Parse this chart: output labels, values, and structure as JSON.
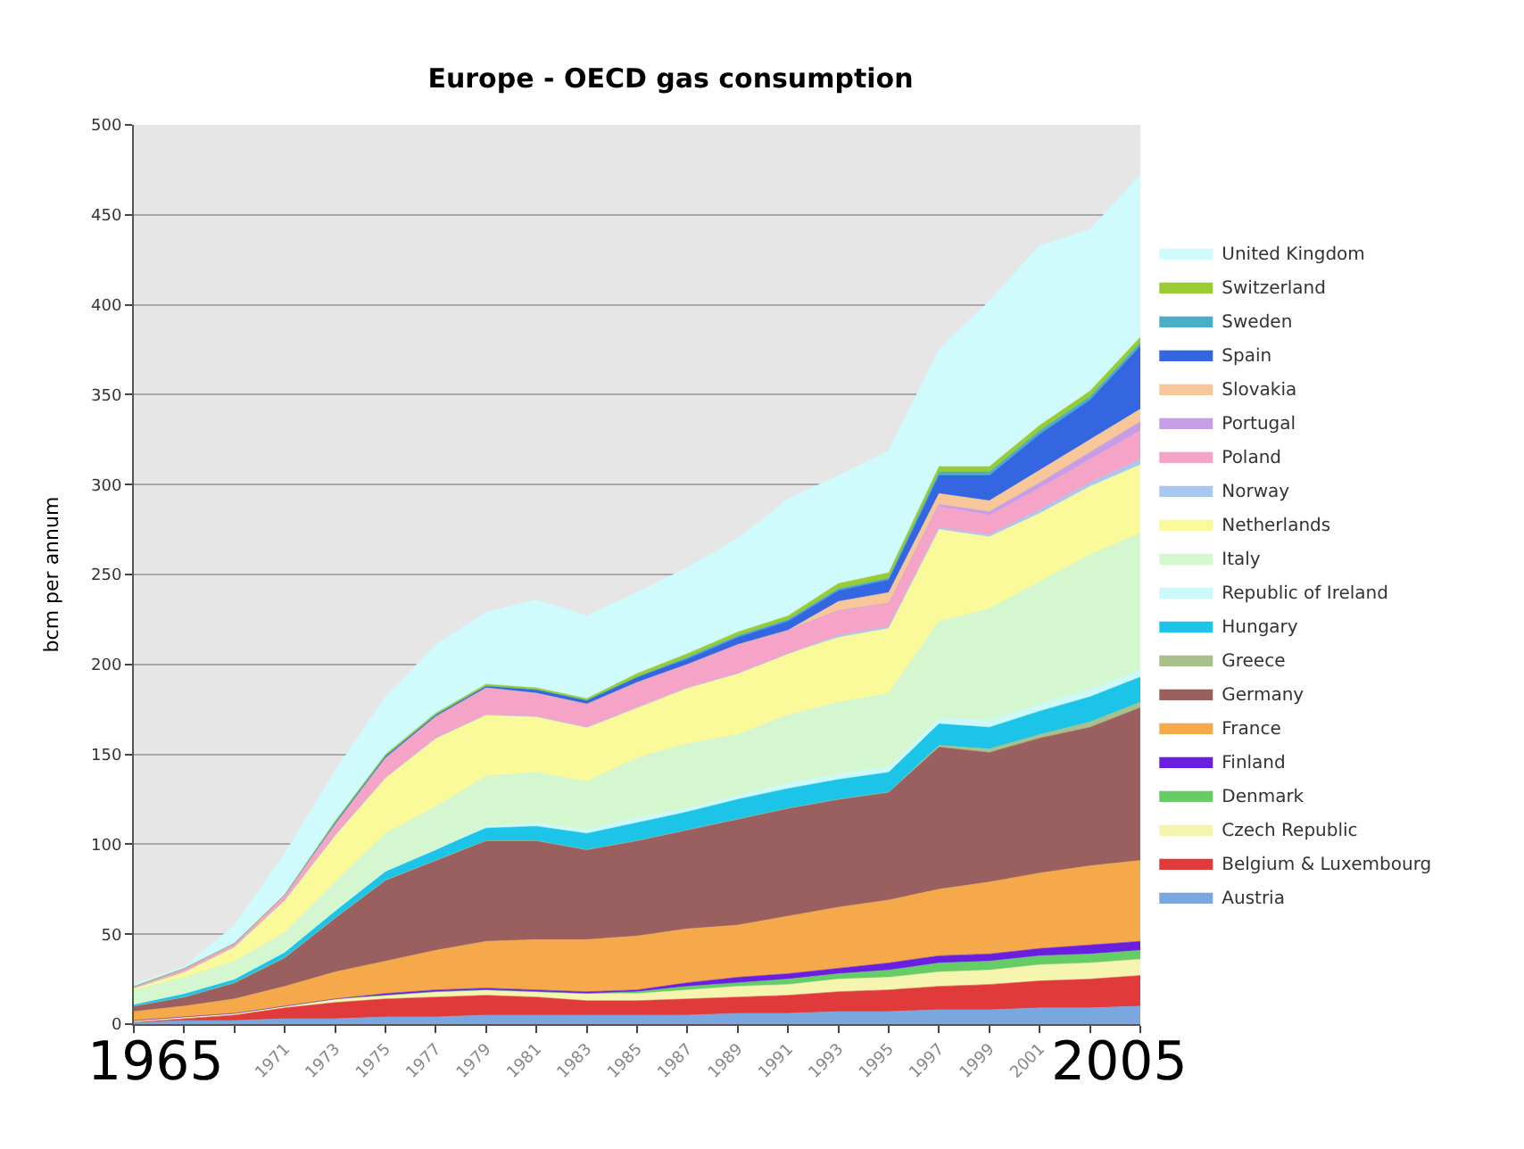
{
  "chart_data": {
    "type": "area",
    "stacked": true,
    "title": "Europe - OECD gas consumption",
    "ylabel": "bcm per annum",
    "x": [
      1965,
      1967,
      1969,
      1971,
      1973,
      1975,
      1977,
      1979,
      1981,
      1983,
      1985,
      1987,
      1989,
      1991,
      1993,
      1995,
      1997,
      1999,
      2001,
      2003,
      2005
    ],
    "xlim": [
      1965,
      2005
    ],
    "xticks": [
      {
        "value": 1965,
        "label": null
      },
      {
        "value": 1967,
        "label": null
      },
      {
        "value": 1969,
        "label": null
      },
      1971,
      1973,
      1975,
      1977,
      1979,
      1981,
      1983,
      1985,
      1987,
      1989,
      1991,
      1993,
      1995,
      1997,
      1999,
      2001,
      {
        "value": 2003,
        "label": null
      },
      {
        "value": 2005,
        "label": null
      }
    ],
    "annotations": [
      "1965",
      "2005"
    ],
    "ylim": [
      0,
      500
    ],
    "yticks": [
      0,
      50,
      100,
      150,
      200,
      250,
      300,
      350,
      400,
      450,
      500
    ],
    "grid": "y",
    "legend": "right",
    "marker": "none",
    "series": [
      {
        "name": "Austria",
        "color": "#7ba7e0",
        "values": [
          1,
          2,
          2,
          3,
          3,
          4,
          4,
          5,
          5,
          5,
          5,
          5,
          6,
          6,
          7,
          7,
          8,
          8,
          9,
          9,
          10
        ]
      },
      {
        "name": "Belgium & Luxembourg",
        "color": "#e03a3a",
        "values": [
          0,
          1,
          3,
          6,
          9,
          10,
          11,
          11,
          10,
          8,
          8,
          9,
          9,
          10,
          11,
          12,
          13,
          14,
          15,
          16,
          17
        ]
      },
      {
        "name": "Czech Republic",
        "color": "#f5f5b0",
        "values": [
          1,
          1,
          1,
          1,
          2,
          2,
          3,
          3,
          3,
          4,
          4,
          5,
          6,
          6,
          7,
          7,
          8,
          8,
          9,
          9,
          9
        ]
      },
      {
        "name": "Denmark",
        "color": "#66cc66",
        "values": [
          0,
          0,
          0,
          0,
          0,
          0,
          0,
          0,
          0,
          0,
          1,
          2,
          2,
          3,
          3,
          4,
          5,
          5,
          5,
          5,
          5
        ]
      },
      {
        "name": "Finland",
        "color": "#6a1fe0",
        "values": [
          0,
          0,
          0,
          0,
          0,
          1,
          1,
          1,
          1,
          1,
          1,
          2,
          3,
          3,
          3,
          4,
          4,
          4,
          4,
          5,
          5
        ]
      },
      {
        "name": "France",
        "color": "#f5a94a",
        "values": [
          5,
          6,
          8,
          11,
          15,
          18,
          22,
          26,
          28,
          29,
          30,
          30,
          29,
          32,
          34,
          35,
          37,
          40,
          42,
          44,
          45
        ]
      },
      {
        "name": "Germany",
        "color": "#9a6060",
        "values": [
          3,
          5,
          9,
          16,
          30,
          45,
          50,
          56,
          55,
          50,
          53,
          55,
          59,
          60,
          60,
          60,
          79,
          72,
          75,
          77,
          85
        ]
      },
      {
        "name": "Greece",
        "color": "#a9c08a",
        "values": [
          0,
          0,
          0,
          0,
          0,
          0,
          0,
          0,
          0,
          0,
          0,
          0,
          0,
          0,
          0,
          0,
          1,
          2,
          2,
          3,
          3
        ]
      },
      {
        "name": "Hungary",
        "color": "#1cc4e8",
        "values": [
          1,
          2,
          2,
          3,
          4,
          5,
          6,
          7,
          8,
          9,
          10,
          10,
          11,
          11,
          11,
          11,
          12,
          12,
          13,
          14,
          14
        ]
      },
      {
        "name": "Republic of Ireland",
        "color": "#ccfafa",
        "values": [
          0,
          0,
          0,
          0,
          0,
          0,
          0,
          1,
          2,
          2,
          3,
          2,
          2,
          3,
          3,
          3,
          3,
          4,
          4,
          4,
          4
        ]
      },
      {
        "name": "Italy",
        "color": "#d4f7cf",
        "values": [
          8,
          9,
          10,
          11,
          16,
          21,
          24,
          28,
          28,
          27,
          33,
          36,
          34,
          38,
          40,
          41,
          54,
          62,
          68,
          75,
          76
        ]
      },
      {
        "name": "Netherlands",
        "color": "#fafa9a",
        "values": [
          1,
          3,
          8,
          18,
          26,
          31,
          38,
          34,
          31,
          30,
          28,
          31,
          34,
          34,
          36,
          36,
          51,
          40,
          38,
          38,
          38
        ]
      },
      {
        "name": "Norway",
        "color": "#a8c8f0",
        "values": [
          0,
          0,
          0,
          0,
          0,
          0,
          0,
          0,
          0,
          0,
          0,
          0,
          0,
          0,
          1,
          1,
          1,
          1,
          2,
          2,
          3
        ]
      },
      {
        "name": "Poland",
        "color": "#f5a3c7",
        "values": [
          1,
          2,
          2,
          3,
          6,
          11,
          12,
          15,
          13,
          13,
          14,
          13,
          16,
          13,
          14,
          13,
          12,
          11,
          12,
          13,
          16
        ]
      },
      {
        "name": "Portugal",
        "color": "#c79ee6",
        "values": [
          0,
          0,
          0,
          0,
          0,
          0,
          0,
          0,
          0,
          0,
          0,
          0,
          0,
          0,
          0,
          0,
          1,
          2,
          3,
          4,
          5
        ]
      },
      {
        "name": "Slovakia",
        "color": "#f7c79a",
        "values": [
          0,
          0,
          0,
          0,
          0,
          0,
          0,
          0,
          0,
          0,
          0,
          0,
          0,
          0,
          5,
          6,
          6,
          6,
          7,
          7,
          7
        ]
      },
      {
        "name": "Spain",
        "color": "#3366e0",
        "values": [
          0,
          0,
          0,
          0,
          1,
          1,
          1,
          1,
          2,
          2,
          3,
          3,
          4,
          5,
          6,
          7,
          10,
          14,
          20,
          22,
          35
        ]
      },
      {
        "name": "Sweden",
        "color": "#4aaec8",
        "values": [
          0,
          0,
          0,
          0,
          0,
          0,
          0,
          0,
          0,
          0,
          0,
          1,
          1,
          1,
          1,
          1,
          2,
          2,
          2,
          2,
          2
        ]
      },
      {
        "name": "Switzerland",
        "color": "#99cc33",
        "values": [
          0,
          0,
          0,
          0,
          1,
          1,
          1,
          1,
          1,
          1,
          2,
          2,
          2,
          2,
          3,
          3,
          3,
          3,
          3,
          3,
          3
        ]
      },
      {
        "name": "United Kingdom",
        "color": "#cffbfd",
        "values": [
          1,
          1,
          10,
          23,
          28,
          32,
          38,
          40,
          49,
          46,
          45,
          48,
          52,
          65,
          60,
          68,
          65,
          92,
          100,
          90,
          90
        ]
      }
    ]
  }
}
